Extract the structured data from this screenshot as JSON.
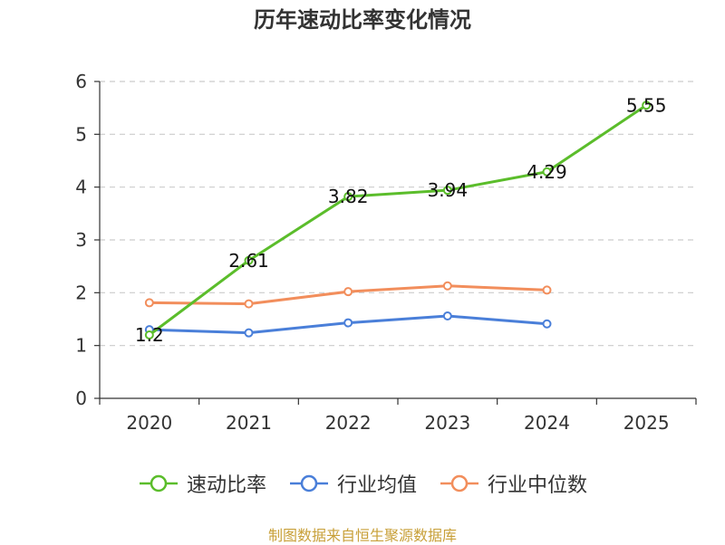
{
  "chart_data": {
    "type": "line",
    "title": "历年速动比率变化情况",
    "categories": [
      "2020",
      "2021",
      "2022",
      "2023",
      "2024",
      "2025"
    ],
    "y_ticks": [
      "0",
      "1",
      "2",
      "3",
      "4",
      "5",
      "6"
    ],
    "ylim": [
      0,
      6
    ],
    "grid": true,
    "legend_position": "bottom",
    "series": [
      {
        "name": "速动比率",
        "color": "#5bbd2b",
        "values": [
          1.2,
          2.61,
          3.82,
          3.94,
          4.29,
          5.55
        ],
        "labels": [
          "1.2",
          "2.61",
          "3.82",
          "3.94",
          "4.29",
          "5.55"
        ]
      },
      {
        "name": "行业均值",
        "color": "#4a7fd9",
        "values": [
          1.3,
          1.24,
          1.43,
          1.56,
          1.41,
          null
        ]
      },
      {
        "name": "行业中位数",
        "color": "#f28e5c",
        "values": [
          1.81,
          1.79,
          2.02,
          2.13,
          2.05,
          null
        ]
      }
    ]
  },
  "source_note": "制图数据来自恒生聚源数据库"
}
